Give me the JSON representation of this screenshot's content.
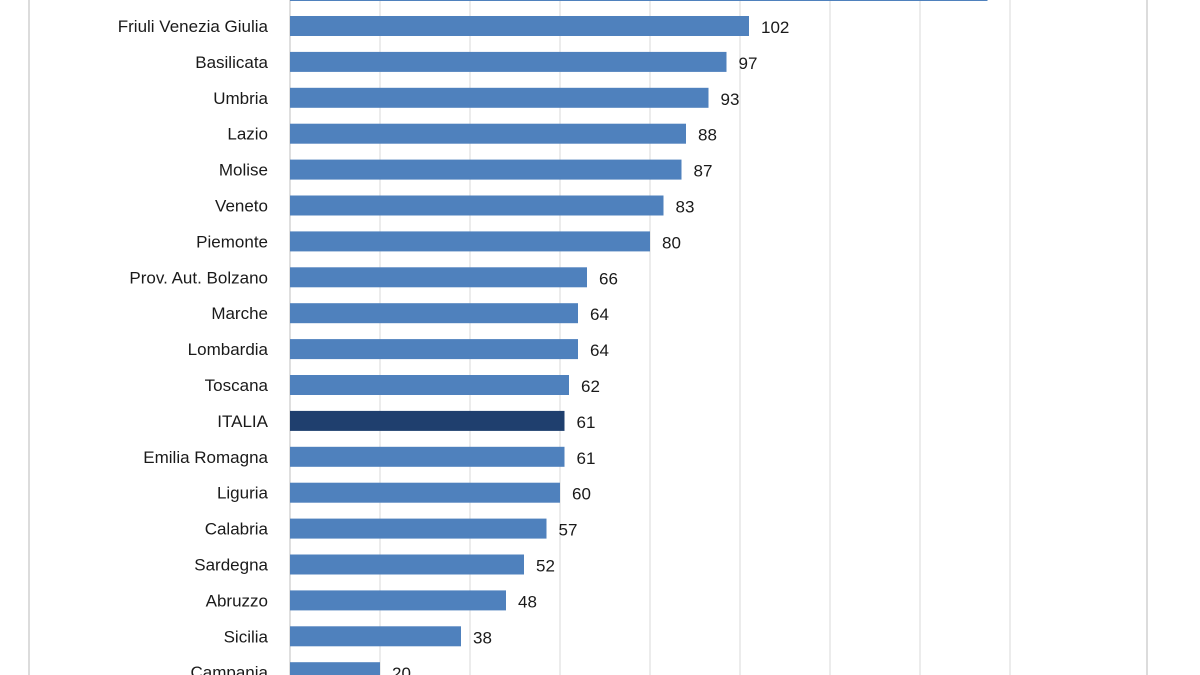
{
  "chart_data": {
    "type": "bar",
    "orientation": "horizontal",
    "title": "",
    "xlabel": "",
    "ylabel": "",
    "xlim": [
      0,
      160
    ],
    "grid": true,
    "grid_step": 20,
    "bar_color": "#4f81bd",
    "highlight_color": "#1f3f6e",
    "highlight_category": "ITALIA",
    "cropped_top_value": 155,
    "categories": [
      "Friuli Venezia Giulia",
      "Basilicata",
      "Umbria",
      "Lazio",
      "Molise",
      "Veneto",
      "Piemonte",
      "Prov. Aut. Bolzano",
      "Marche",
      "Lombardia",
      "Toscana",
      "ITALIA",
      "Emilia Romagna",
      "Liguria",
      "Calabria",
      "Sardegna",
      "Abruzzo",
      "Sicilia",
      "Campania"
    ],
    "values": [
      102,
      97,
      93,
      88,
      87,
      83,
      80,
      66,
      64,
      64,
      62,
      61,
      61,
      60,
      57,
      52,
      48,
      38,
      20
    ]
  }
}
